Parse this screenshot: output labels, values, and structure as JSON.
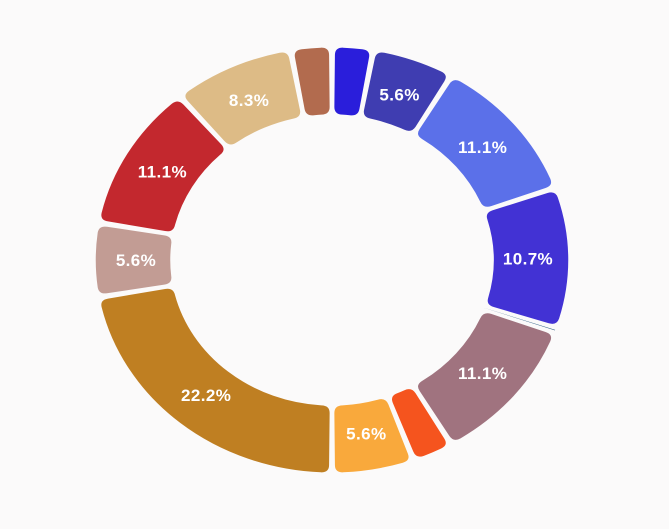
{
  "background": "#fbfafa",
  "chart_data": {
    "type": "pie",
    "subtype": "donut",
    "title": "",
    "legend": "none",
    "start_angle_deg": 0,
    "direction": "clockwise",
    "label_color": "#ffffff",
    "label_note": "percentage labels shown only on larger slices",
    "segments": [
      {
        "name": "vivid-blue",
        "value": 2.8,
        "label": "",
        "color": "#2a1edb"
      },
      {
        "name": "indigo",
        "value": 5.6,
        "label": "5.6%",
        "color": "#3f3db1"
      },
      {
        "name": "cornflower-blue",
        "value": 11.1,
        "label": "11.1%",
        "color": "#5b70e9"
      },
      {
        "name": "blue-violet",
        "value": 10.7,
        "label": "10.7%",
        "color": "#4232d4"
      },
      {
        "name": "steel-blue-sliver",
        "value": 0.3,
        "label": "",
        "color": "#2f6086"
      },
      {
        "name": "mauve",
        "value": 11.1,
        "label": "11.1%",
        "color": "#a0737f"
      },
      {
        "name": "orange-red",
        "value": 2.8,
        "label": "",
        "color": "#f5541e"
      },
      {
        "name": "amber",
        "value": 5.6,
        "label": "5.6%",
        "color": "#f9a93c"
      },
      {
        "name": "dark-goldenrod",
        "value": 22.2,
        "label": "22.2%",
        "color": "#bf7f22"
      },
      {
        "name": "rosy-brown",
        "value": 5.6,
        "label": "5.6%",
        "color": "#c29c94"
      },
      {
        "name": "crimson-red",
        "value": 11.1,
        "label": "11.1%",
        "color": "#c3282e"
      },
      {
        "name": "tan",
        "value": 8.3,
        "label": "8.3%",
        "color": "#ddbb86"
      },
      {
        "name": "sienna",
        "value": 2.8,
        "label": "",
        "color": "#b26b4e"
      }
    ]
  }
}
